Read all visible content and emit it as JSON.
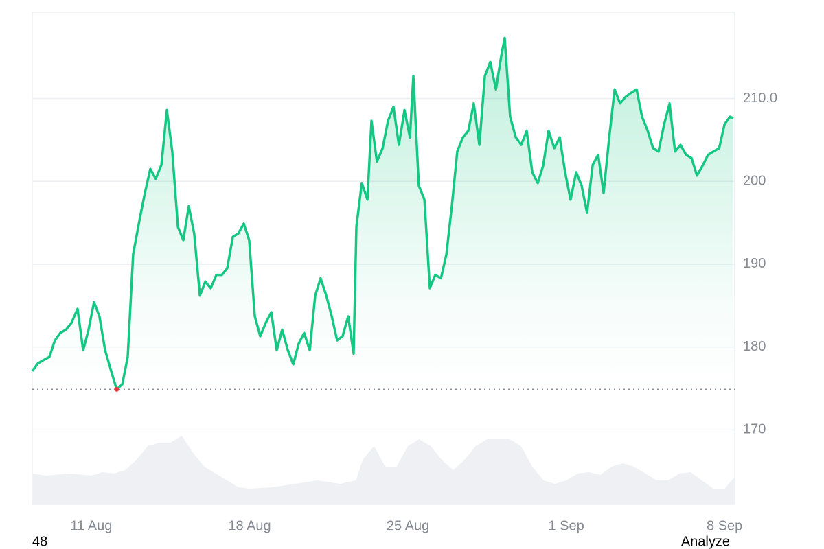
{
  "chart_data": {
    "type": "line",
    "color": "#16c784",
    "baseline": 174.9,
    "baseline_color": "#8a8f98",
    "low_color": "#ea3943",
    "grid": true,
    "ylim": [
      161,
      220.4
    ],
    "yticks": [
      170,
      180,
      190,
      {
        "value": 200,
        "label": "200"
      },
      {
        "value": 210,
        "label": "210.0"
      }
    ],
    "xlim": [
      8.39,
      39.45
    ],
    "xticks": [
      {
        "value": 11,
        "label": "11 Aug"
      },
      {
        "value": 18,
        "label": "18 Aug"
      },
      {
        "value": 25,
        "label": "25 Aug"
      },
      {
        "value": 32,
        "label": "1 Sep"
      },
      {
        "value": 39,
        "label": "8 Sep"
      }
    ],
    "x": [
      8.39,
      8.63,
      8.87,
      9.15,
      9.39,
      9.63,
      9.88,
      10.12,
      10.39,
      10.64,
      10.88,
      11.12,
      11.36,
      11.61,
      11.88,
      12.12,
      12.37,
      12.61,
      12.85,
      13.13,
      13.37,
      13.61,
      13.85,
      14.1,
      14.34,
      14.58,
      14.83,
      15.07,
      15.31,
      15.55,
      15.8,
      16.04,
      16.28,
      16.53,
      16.77,
      17.01,
      17.26,
      17.5,
      17.74,
      17.98,
      18.23,
      18.47,
      18.71,
      18.96,
      19.2,
      19.44,
      19.69,
      19.93,
      20.17,
      20.41,
      20.66,
      20.9,
      21.14,
      21.39,
      21.63,
      21.87,
      22.11,
      22.36,
      22.6,
      22.72,
      22.96,
      23.21,
      23.39,
      23.63,
      23.88,
      24.12,
      24.36,
      24.6,
      24.85,
      25.09,
      25.24,
      25.48,
      25.73,
      25.97,
      26.21,
      26.46,
      26.7,
      26.94,
      27.18,
      27.43,
      27.67,
      27.91,
      28.16,
      28.4,
      28.64,
      28.89,
      29.13,
      29.28,
      29.52,
      29.77,
      30.01,
      30.25,
      30.5,
      30.74,
      30.98,
      31.22,
      31.47,
      31.71,
      31.95,
      32.19,
      32.44,
      32.68,
      32.92,
      33.17,
      33.41,
      33.65,
      33.9,
      34.14,
      34.38,
      34.63,
      34.87,
      35.11,
      35.35,
      35.6,
      35.84,
      36.08,
      36.33,
      36.57,
      36.81,
      37.05,
      37.3,
      37.54,
      37.78,
      38.03,
      38.27,
      38.51,
      38.76,
      39.0,
      39.24,
      39.39
    ],
    "values": [
      177.1,
      178.0,
      178.4,
      178.8,
      180.8,
      181.7,
      182.1,
      182.9,
      184.6,
      179.6,
      182.1,
      185.4,
      183.7,
      179.6,
      177.1,
      174.9,
      175.5,
      178.8,
      191.2,
      195.3,
      198.6,
      201.5,
      200.3,
      202.0,
      208.6,
      203.6,
      194.5,
      192.9,
      197.0,
      193.7,
      186.2,
      187.9,
      187.1,
      188.7,
      188.7,
      189.5,
      193.3,
      193.7,
      194.9,
      192.9,
      183.7,
      181.3,
      182.9,
      184.2,
      179.6,
      182.1,
      179.6,
      177.9,
      180.4,
      181.7,
      179.6,
      186.2,
      188.3,
      186.2,
      183.7,
      180.8,
      181.3,
      183.7,
      179.2,
      194.5,
      199.8,
      197.8,
      207.3,
      202.4,
      204.0,
      207.3,
      209.0,
      204.4,
      208.6,
      205.3,
      212.7,
      199.5,
      197.8,
      187.1,
      188.7,
      188.3,
      191.2,
      197.0,
      203.6,
      205.3,
      206.1,
      209.4,
      204.4,
      212.7,
      214.4,
      211.1,
      215.2,
      217.3,
      207.8,
      205.3,
      204.4,
      206.1,
      201.1,
      199.8,
      201.9,
      206.1,
      204.0,
      205.3,
      201.1,
      197.8,
      201.1,
      199.5,
      196.2,
      202.0,
      203.2,
      198.6,
      205.3,
      211.1,
      209.4,
      210.2,
      210.7,
      211.1,
      207.8,
      206.1,
      204.0,
      203.6,
      206.9,
      209.4,
      203.6,
      204.4,
      203.2,
      202.8,
      200.7,
      201.9,
      203.2,
      203.6,
      204.0,
      206.9,
      207.8,
      207.6
    ],
    "volume": {
      "color": "#eef0f3",
      "x": [
        8.39,
        9,
        10,
        11,
        11.5,
        12,
        12.5,
        13,
        13.5,
        14,
        14.5,
        15,
        15.5,
        16,
        16.5,
        17,
        17.5,
        18,
        19,
        20,
        21,
        22,
        22.7,
        23,
        23.5,
        24,
        24.5,
        25,
        25.5,
        26,
        26.5,
        27,
        27.5,
        28,
        28.5,
        29,
        29.5,
        30,
        30.5,
        31,
        31.5,
        32,
        32.5,
        33,
        33.5,
        34,
        34.5,
        35,
        35.5,
        36,
        36.5,
        37,
        37.5,
        38,
        38.5,
        39,
        39.45
      ],
      "values": [
        45,
        42,
        45,
        42,
        47,
        45,
        50,
        65,
        85,
        90,
        90,
        100,
        75,
        55,
        45,
        35,
        25,
        23,
        25,
        30,
        35,
        30,
        35,
        65,
        85,
        55,
        55,
        85,
        95,
        85,
        65,
        50,
        65,
        85,
        95,
        95,
        95,
        85,
        55,
        35,
        30,
        35,
        45,
        47,
        43,
        55,
        60,
        55,
        45,
        35,
        35,
        45,
        47,
        35,
        23,
        23,
        40
      ]
    }
  },
  "footer": {
    "left": "48",
    "button": "Analyze"
  }
}
